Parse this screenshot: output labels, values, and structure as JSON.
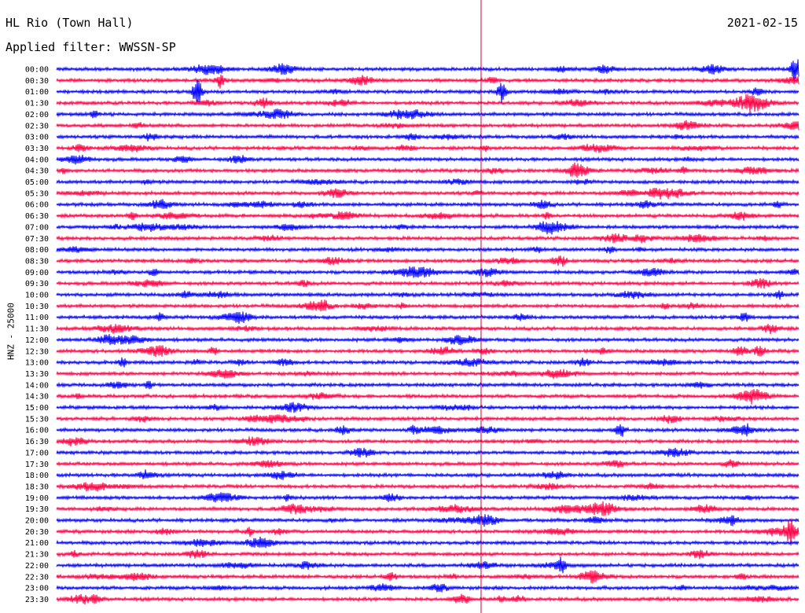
{
  "header": {
    "station": "HL Rio (Town Hall)",
    "date": "2021-02-15",
    "filter": "Applied filter: WWSSN-SP",
    "channel_label": "HNZ - 25000"
  },
  "colors": {
    "series_a": "#0000ff",
    "series_b": "#ff0044",
    "marker": "#cc0033",
    "background": "#ffffff"
  },
  "chart_data": {
    "type": "line",
    "subtype": "helicorder",
    "ylabel": "HNZ - 25000",
    "row_labels": [
      "00:00",
      "00:30",
      "01:00",
      "01:30",
      "02:00",
      "02:30",
      "03:00",
      "03:30",
      "04:00",
      "04:30",
      "05:00",
      "05:30",
      "06:00",
      "06:30",
      "07:00",
      "07:30",
      "08:00",
      "08:30",
      "09:00",
      "09:30",
      "10:00",
      "10:30",
      "11:00",
      "11:30",
      "12:00",
      "12:30",
      "13:00",
      "13:30",
      "14:00",
      "14:30",
      "15:00",
      "15:30",
      "16:00",
      "16:30",
      "17:00",
      "17:30",
      "18:00",
      "18:30",
      "19:00",
      "19:30",
      "20:00",
      "20:30",
      "21:00",
      "21:30",
      "22:00",
      "22:30",
      "23:00",
      "23:30"
    ],
    "row_duration_minutes": 30,
    "alternating_colors": [
      "#0000ff",
      "#ff0044"
    ],
    "current_time_fraction": 0.572,
    "notable_events": [
      {
        "row": "00:00",
        "fraction": 0.995,
        "amplitude": 1.0
      },
      {
        "row": "01:00",
        "fraction": 0.19,
        "amplitude": 0.8
      },
      {
        "row": "01:00",
        "fraction": 0.6,
        "amplitude": 0.8
      },
      {
        "row": "00:30",
        "fraction": 0.22,
        "amplitude": 0.5
      },
      {
        "row": "20:30",
        "fraction": 0.99,
        "amplitude": 0.9
      },
      {
        "row": "22:00",
        "fraction": 0.68,
        "amplitude": 0.6
      },
      {
        "row": "16:00",
        "fraction": 0.76,
        "amplitude": 0.6
      }
    ]
  }
}
